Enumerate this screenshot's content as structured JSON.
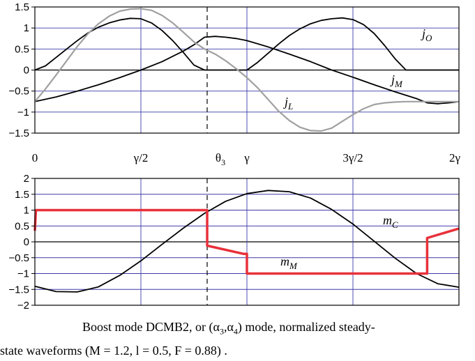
{
  "chart_data": [
    {
      "type": "line",
      "x_tick_labels": [
        "0",
        "γ/2",
        "θ3",
        "γ",
        "3γ/2",
        "2γ"
      ],
      "x_tick_values": [
        0,
        0.5,
        0.8125,
        1.0,
        1.5,
        2.0
      ],
      "ylim": [
        -1.5,
        1.5
      ],
      "y_ticks": [
        -1.5,
        -1,
        -0.5,
        0,
        0.5,
        1,
        1.5
      ],
      "y_tick_labels": [
        "−1.5",
        "−1",
        "−0.5",
        "0",
        "0.5",
        "1",
        "1.5"
      ],
      "grid": true,
      "vline_dashed": 0.8125,
      "series": [
        {
          "name": "jO",
          "label_main": "j",
          "label_sub": "O",
          "color": "#000000",
          "x": [
            0,
            0.05,
            0.1,
            0.15,
            0.2,
            0.25,
            0.3,
            0.35,
            0.4,
            0.45,
            0.5,
            0.55,
            0.6,
            0.65,
            0.7,
            0.75,
            0.8,
            0.85,
            0.9,
            0.95,
            1.0,
            1.05,
            1.1,
            1.15,
            1.2,
            1.25,
            1.3,
            1.35,
            1.4,
            1.45,
            1.5,
            1.55,
            1.6,
            1.65,
            1.7,
            1.75,
            1.8,
            1.85,
            1.9,
            1.95,
            2.0
          ],
          "y": [
            0.0,
            0.1,
            0.3,
            0.5,
            0.7,
            0.88,
            1.02,
            1.12,
            1.19,
            1.23,
            1.22,
            1.12,
            0.94,
            0.7,
            0.42,
            0.12,
            0.0,
            0.0,
            0.0,
            0.0,
            0.0,
            0.18,
            0.4,
            0.62,
            0.82,
            0.98,
            1.1,
            1.18,
            1.22,
            1.24,
            1.2,
            1.08,
            0.87,
            0.58,
            0.26,
            0.0,
            0.0,
            0.0,
            0.0,
            0.0,
            0.0
          ]
        },
        {
          "name": "jM",
          "label_main": "j",
          "label_sub": "M",
          "color": "#000000",
          "x": [
            0,
            0.1,
            0.2,
            0.3,
            0.4,
            0.5,
            0.6,
            0.7,
            0.75,
            0.8,
            0.85,
            0.9,
            0.95,
            1.0,
            1.1,
            1.2,
            1.3,
            1.4,
            1.5,
            1.6,
            1.7,
            1.8,
            1.85,
            1.9,
            1.95,
            2.0
          ],
          "y": [
            -0.75,
            -0.64,
            -0.5,
            -0.35,
            -0.18,
            0.0,
            0.2,
            0.45,
            0.6,
            0.78,
            0.8,
            0.78,
            0.75,
            0.7,
            0.55,
            0.38,
            0.2,
            0.0,
            -0.17,
            -0.35,
            -0.52,
            -0.68,
            -0.78,
            -0.8,
            -0.78,
            -0.75
          ]
        },
        {
          "name": "jL",
          "label_main": "j",
          "label_sub": "L",
          "color": "#a0a0a0",
          "x": [
            0,
            0.05,
            0.1,
            0.15,
            0.2,
            0.25,
            0.3,
            0.35,
            0.4,
            0.45,
            0.5,
            0.55,
            0.6,
            0.65,
            0.7,
            0.75,
            0.8,
            0.85,
            0.9,
            0.95,
            1.0,
            1.05,
            1.1,
            1.15,
            1.2,
            1.25,
            1.3,
            1.35,
            1.4,
            1.45,
            1.5,
            1.55,
            1.6,
            1.65,
            1.7,
            1.75,
            1.8,
            1.85,
            1.9,
            1.95,
            2.0
          ],
          "y": [
            -0.75,
            -0.45,
            -0.12,
            0.22,
            0.56,
            0.86,
            1.1,
            1.28,
            1.4,
            1.45,
            1.46,
            1.42,
            1.3,
            1.12,
            0.9,
            0.67,
            0.5,
            0.38,
            0.22,
            0.03,
            -0.18,
            -0.42,
            -0.7,
            -0.98,
            -1.2,
            -1.36,
            -1.44,
            -1.45,
            -1.38,
            -1.22,
            -1.06,
            -0.92,
            -0.82,
            -0.78,
            -0.76,
            -0.75,
            -0.75,
            -0.75,
            -0.75,
            -0.75,
            -0.75
          ]
        }
      ]
    },
    {
      "type": "line",
      "x_tick_values": [
        0,
        0.5,
        0.8125,
        1.0,
        1.5,
        2.0
      ],
      "ylim": [
        -2,
        2
      ],
      "y_ticks": [
        -2,
        -1.5,
        -1,
        -0.5,
        0,
        0.5,
        1,
        1.5,
        2
      ],
      "y_tick_labels": [
        "−2",
        "−1.5",
        "−1",
        "−0.5",
        "0",
        "0.5",
        "1",
        "1.5",
        "2"
      ],
      "grid": true,
      "vline_dashed": 0.8125,
      "series": [
        {
          "name": "mC",
          "label_main": "m",
          "label_sub": "C",
          "color": "#000000",
          "x": [
            0,
            0.1,
            0.2,
            0.3,
            0.4,
            0.5,
            0.6,
            0.7,
            0.8,
            0.9,
            1.0,
            1.1,
            1.2,
            1.3,
            1.4,
            1.5,
            1.6,
            1.7,
            1.8,
            1.9,
            2.0
          ],
          "y": [
            -1.4,
            -1.57,
            -1.58,
            -1.42,
            -1.06,
            -0.6,
            -0.08,
            0.43,
            0.9,
            1.28,
            1.52,
            1.62,
            1.58,
            1.38,
            1.02,
            0.56,
            0.02,
            -0.52,
            -1.0,
            -1.32,
            -1.43
          ]
        },
        {
          "name": "mM",
          "label_main": "m",
          "label_sub": "M",
          "color": "#e8313a",
          "x": [
            0,
            0.005,
            0.8125,
            0.8125,
            0.985,
            1.0,
            1.0,
            1.85,
            1.85,
            2.0
          ],
          "y": [
            0.35,
            1.0,
            1.0,
            -0.12,
            -0.38,
            -0.38,
            -1.0,
            -1.0,
            0.12,
            0.42
          ]
        }
      ]
    }
  ],
  "caption": {
    "line1": "Boost mode DCMB2, or  (α",
    "line1_sub1": "3",
    "line1_mid": ",α",
    "line1_sub2": "4",
    "line1_end": ")  mode, normalized steady-",
    "line2": "state waveforms  (M = 1.2, l = 0.5, F = 0.88) ."
  }
}
